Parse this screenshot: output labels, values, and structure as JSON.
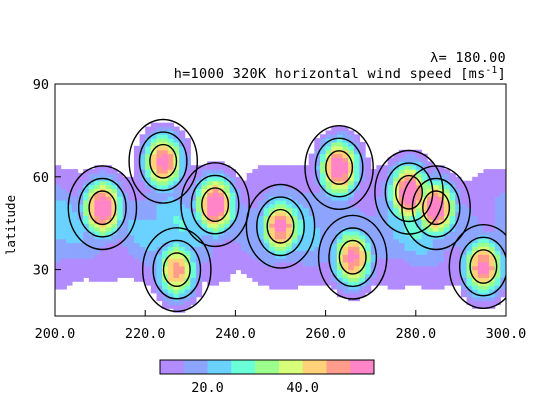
{
  "chart_data": {
    "type": "heatmap",
    "subtype": "filled-contour",
    "title_left": "h=1000  320K horizontal wind speed [ms",
    "title_unit_exponent": "-1",
    "title_unit_close": "]",
    "title_right": "λ= 180.00",
    "xlabel": "",
    "ylabel": "latitude",
    "xlim": [
      200,
      300
    ],
    "ylim": [
      15,
      90
    ],
    "x_ticks": [
      {
        "value": 200,
        "label": "200.0"
      },
      {
        "value": 220,
        "label": "220.0"
      },
      {
        "value": 240,
        "label": "240.0"
      },
      {
        "value": 260,
        "label": "260.0"
      },
      {
        "value": 280,
        "label": "280.0"
      },
      {
        "value": 300,
        "label": "300.0"
      }
    ],
    "y_ticks": [
      {
        "value": 30,
        "label": "30"
      },
      {
        "value": 60,
        "label": "60"
      },
      {
        "value": 90,
        "label": "90"
      }
    ],
    "contour_levels": [
      10,
      15,
      20,
      25,
      30,
      35,
      40,
      45,
      50
    ],
    "line_contours": [
      15,
      30,
      45
    ],
    "fill_colors": [
      "#b28cff",
      "#8ca5ff",
      "#6bd2ff",
      "#6bffd8",
      "#9cff8c",
      "#d8ff7a",
      "#ffd27a",
      "#ff9c8c",
      "#ff85c8"
    ],
    "colorbar": {
      "labels": [
        {
          "value": 20,
          "label": "20.0"
        },
        {
          "value": 40,
          "label": "40.0"
        }
      ]
    },
    "jet_cores": [
      {
        "lon": 210.5,
        "lat": 50,
        "peak": 52
      },
      {
        "lon": 224,
        "lat": 65,
        "peak": 47
      },
      {
        "lon": 235.5,
        "lat": 51,
        "peak": 52
      },
      {
        "lon": 250,
        "lat": 44,
        "peak": 47
      },
      {
        "lon": 263,
        "lat": 63,
        "peak": 51
      },
      {
        "lon": 278.5,
        "lat": 55,
        "peak": 52
      },
      {
        "lon": 284.5,
        "lat": 50,
        "peak": 51
      },
      {
        "lon": 266,
        "lat": 34,
        "peak": 46
      },
      {
        "lon": 295,
        "lat": 31,
        "peak": 47
      },
      {
        "lon": 227,
        "lat": 30,
        "peak": 42
      }
    ]
  }
}
